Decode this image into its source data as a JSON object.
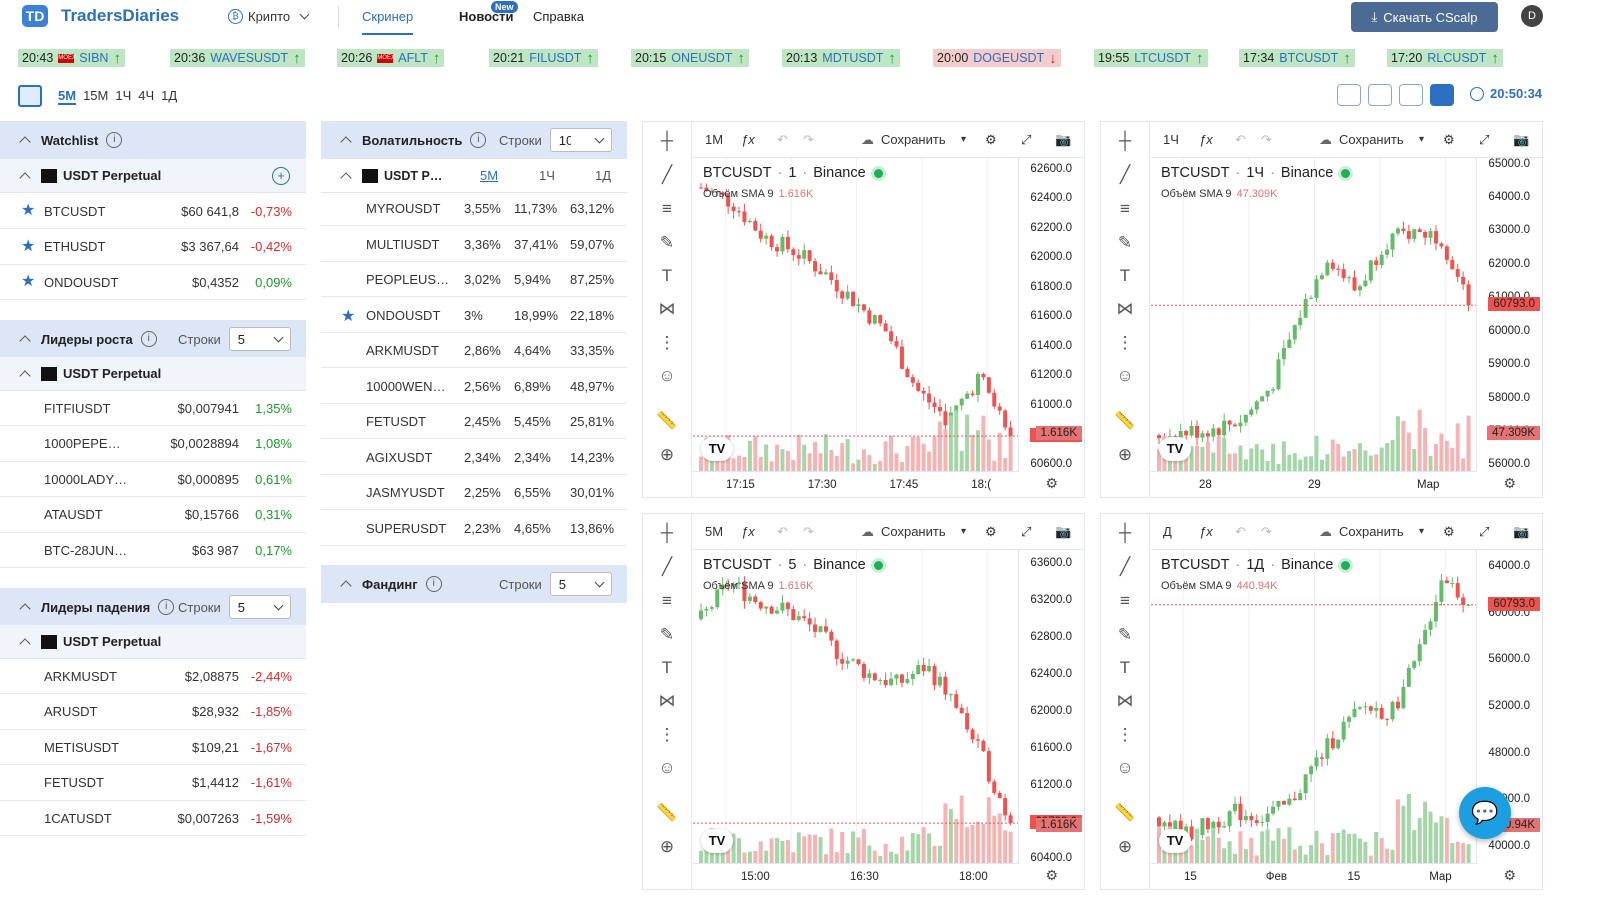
{
  "app": {
    "logo_mark": "TD",
    "name": "TradersDiaries"
  },
  "nav": {
    "crypto": "Крипто",
    "screener": "Скринер",
    "news": "Новости",
    "news_badge": "New",
    "help": "Справка",
    "download": "Скачать CScalp",
    "avatar": "D"
  },
  "ticker": [
    {
      "time": "20:43",
      "symbol": "SIBN",
      "dir": "up",
      "moex": true
    },
    {
      "time": "20:36",
      "symbol": "WAVESUSDT",
      "dir": "up"
    },
    {
      "time": "20:26",
      "symbol": "AFLT",
      "dir": "up",
      "moex": true
    },
    {
      "time": "20:21",
      "symbol": "FILUSDT",
      "dir": "up"
    },
    {
      "time": "20:15",
      "symbol": "ONEUSDT",
      "dir": "up"
    },
    {
      "time": "20:13",
      "symbol": "MDTUSDT",
      "dir": "up"
    },
    {
      "time": "20:00",
      "symbol": "DOGEUSDT",
      "dir": "down"
    },
    {
      "time": "19:55",
      "symbol": "LTCUSDT",
      "dir": "up"
    },
    {
      "time": "17:34",
      "symbol": "BTCUSDT",
      "dir": "up"
    },
    {
      "time": "17:20",
      "symbol": "RLCUSDT",
      "dir": "up"
    }
  ],
  "timeframes": [
    "5М",
    "15М",
    "1Ч",
    "4Ч",
    "1Д"
  ],
  "active_timeframe": "5М",
  "clock": "20:50:34",
  "watchlist": {
    "title": "Watchlist",
    "group": "USDT Perpetual",
    "rows": [
      {
        "name": "BTCUSDT",
        "price": "$60 641,8",
        "pct": "-0,73%",
        "sign": "neg"
      },
      {
        "name": "ETHUSDT",
        "price": "$3 367,64",
        "pct": "-0,42%",
        "sign": "neg"
      },
      {
        "name": "ONDOUSDT",
        "price": "$0,4352",
        "pct": "0,09%",
        "sign": "pos"
      }
    ]
  },
  "gainers": {
    "title": "Лидеры роста",
    "rows_label": "Строки",
    "rows_value": "5",
    "group": "USDT Perpetual",
    "rows": [
      {
        "name": "FITFIUSDT",
        "price": "$0,007941",
        "pct": "1,35%",
        "sign": "pos"
      },
      {
        "name": "1000PEPE…",
        "price": "$0,0028894",
        "pct": "1,08%",
        "sign": "pos"
      },
      {
        "name": "10000LADY…",
        "price": "$0,000895",
        "pct": "0,61%",
        "sign": "pos"
      },
      {
        "name": "ATAUSDT",
        "price": "$0,15766",
        "pct": "0,31%",
        "sign": "pos"
      },
      {
        "name": "BTC-28JUN…",
        "price": "$63 987",
        "pct": "0,17%",
        "sign": "pos"
      }
    ]
  },
  "losers": {
    "title": "Лидеры падения",
    "rows_label": "Строки",
    "rows_value": "5",
    "group": "USDT Perpetual",
    "rows": [
      {
        "name": "ARKMUSDT",
        "price": "$2,08875",
        "pct": "-2,44%",
        "sign": "neg"
      },
      {
        "name": "ARUSDT",
        "price": "$28,932",
        "pct": "-1,85%",
        "sign": "neg"
      },
      {
        "name": "METISUSDT",
        "price": "$109,21",
        "pct": "-1,67%",
        "sign": "neg"
      },
      {
        "name": "FETUSDT",
        "price": "$1,4412",
        "pct": "-1,61%",
        "sign": "neg"
      },
      {
        "name": "1CATUSDT",
        "price": "$0,007263",
        "pct": "-1,59%",
        "sign": "neg"
      }
    ]
  },
  "volatility": {
    "title": "Волатильность",
    "rows_label": "Строки",
    "rows_value": "10",
    "group": "USDT P…",
    "cols": [
      "5М",
      "1Ч",
      "1Д"
    ],
    "rows": [
      {
        "name": "MYROUSDT",
        "c1": "3,55%",
        "c2": "11,73%",
        "c3": "63,12%"
      },
      {
        "name": "MULTIUSDT",
        "c1": "3,36%",
        "c2": "37,41%",
        "c3": "59,07%"
      },
      {
        "name": "PEOPLEUS…",
        "c1": "3,02%",
        "c2": "5,94%",
        "c3": "87,25%"
      },
      {
        "name": "ONDOUSDT",
        "c1": "3%",
        "c2": "18,99%",
        "c3": "22,18%",
        "star": true
      },
      {
        "name": "ARKMUSDT",
        "c1": "2,86%",
        "c2": "4,64%",
        "c3": "33,35%"
      },
      {
        "name": "10000WEN…",
        "c1": "2,56%",
        "c2": "6,89%",
        "c3": "48,97%"
      },
      {
        "name": "FETUSDT",
        "c1": "2,45%",
        "c2": "5,45%",
        "c3": "25,81%"
      },
      {
        "name": "AGIXUSDT",
        "c1": "2,34%",
        "c2": "2,34%",
        "c3": "14,23%"
      },
      {
        "name": "JASMYUSDT",
        "c1": "2,25%",
        "c2": "6,55%",
        "c3": "30,01%"
      },
      {
        "name": "SUPERUSDT",
        "c1": "2,23%",
        "c2": "4,65%",
        "c3": "13,86%"
      }
    ]
  },
  "funding": {
    "title": "Фандинг",
    "rows_label": "Строки",
    "rows_value": "5"
  },
  "charts": [
    {
      "interval": "1М",
      "symbol": "BTCUSDT",
      "sep_interval": "1",
      "exchange": "Binance",
      "vol_label": "Объём SMA 9",
      "vol_value": "1.616K",
      "y_labels": [
        "62600.0",
        "62400.0",
        "62200.0",
        "62000.0",
        "61800.0",
        "61600.0",
        "61400.0",
        "61200.0",
        "61000.0",
        "60800.0",
        "60600.0"
      ],
      "y_min": 60550,
      "y_max": 62680,
      "last_price": "60793.0",
      "last_vol": "1.616K",
      "x_labels": [
        "17:15",
        "17:30",
        "17:45",
        "18:("
      ],
      "trend": [
        62480,
        62380,
        62150,
        62050,
        61900,
        61700,
        61500,
        61100,
        60900,
        61200,
        60793
      ],
      "save": "Сохранить"
    },
    {
      "interval": "1Ч",
      "symbol": "BTCUSDT",
      "sep_interval": "1Ч",
      "exchange": "Binance",
      "vol_label": "Объём SMA 9",
      "vol_value": "47.309K",
      "y_labels": [
        "65000.0",
        "64000.0",
        "63000.0",
        "62000.0",
        "61000.0",
        "60000.0",
        "59000.0",
        "58000.0",
        "57000.0",
        "56000.0"
      ],
      "y_min": 55800,
      "y_max": 65200,
      "last_price": "60793.0",
      "last_vol": "47.309K",
      "x_labels": [
        "28",
        "29",
        "Мар"
      ],
      "trend": [
        56900,
        57000,
        57100,
        57400,
        58400,
        60500,
        62300,
        61200,
        62700,
        63000,
        62900,
        60793
      ],
      "save": "Сохранить"
    },
    {
      "interval": "5М",
      "symbol": "BTCUSDT",
      "sep_interval": "5",
      "exchange": "Binance",
      "vol_label": "Объём SMA 9",
      "vol_value": "1.616K",
      "y_labels": [
        "63600.0",
        "63200.0",
        "62800.0",
        "62400.0",
        "62000.0",
        "61600.0",
        "61200.0",
        "60800.0",
        "60400.0"
      ],
      "y_min": 60350,
      "y_max": 63750,
      "last_price": "60793.0",
      "last_vol": "1.616K",
      "x_labels": [
        "15:00",
        "16:30",
        "18:00"
      ],
      "trend": [
        63000,
        63400,
        63200,
        63100,
        62900,
        62600,
        62400,
        62300,
        62500,
        62100,
        61500,
        60793
      ],
      "save": "Сохранить"
    },
    {
      "interval": "Д",
      "symbol": "BTCUSDT",
      "sep_interval": "1Д",
      "exchange": "Binance",
      "vol_label": "Объём SMA 9",
      "vol_value": "440.94K",
      "y_labels": [
        "64000.0",
        "60000.0",
        "56000.0",
        "52000.0",
        "48000.0",
        "44000.0",
        "40000.0"
      ],
      "y_min": 38500,
      "y_max": 65500,
      "last_price": "60793.0",
      "last_vol": "440.94K",
      "x_labels": [
        "15",
        "Фев",
        "15",
        "Мар"
      ],
      "trend": [
        42500,
        41000,
        42000,
        43000,
        42500,
        43500,
        47000,
        50000,
        52000,
        51500,
        56000,
        63500,
        60793
      ],
      "save": "Сохранить"
    }
  ],
  "colors": {
    "accent": "#2c6fbf",
    "up": "#26a69a",
    "down": "#ef5350",
    "candle_up": "#66bb6a",
    "candle_down": "#ef5350"
  }
}
